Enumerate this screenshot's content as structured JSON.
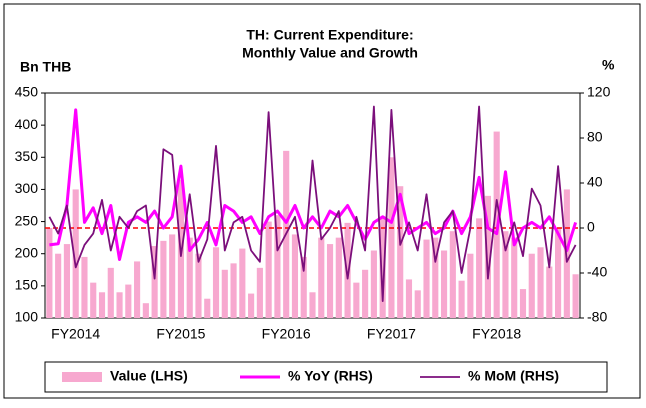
{
  "chart_data": {
    "type": "bar_line_dual",
    "title": [
      "TH: Current Expenditure:",
      "Monthly Value and Growth"
    ],
    "y_label": "Bn THB",
    "y2_label": "%",
    "categories": [
      null,
      null,
      null,
      "FY2014",
      null,
      null,
      null,
      null,
      null,
      null,
      null,
      null,
      null,
      null,
      null,
      "FY2015",
      null,
      null,
      null,
      null,
      null,
      null,
      null,
      null,
      null,
      null,
      null,
      "FY2016",
      null,
      null,
      null,
      null,
      null,
      null,
      null,
      null,
      null,
      null,
      null,
      "FY2017",
      null,
      null,
      null,
      null,
      null,
      null,
      null,
      null,
      null,
      null,
      null,
      "FY2018",
      null,
      null,
      null,
      null,
      null,
      null,
      null,
      null,
      null
    ],
    "series": [
      {
        "name": "Value (LHS)",
        "kind": "bar",
        "axis": "y",
        "color": "#f7a8cf",
        "values": [
          240,
          200,
          215,
          300,
          195,
          155,
          140,
          178,
          140,
          152,
          188,
          123,
          212,
          220,
          230,
          315,
          225,
          200,
          130,
          210,
          175,
          185,
          208,
          138,
          178,
          250,
          260,
          360,
          230,
          195,
          140,
          225,
          215,
          225,
          248,
          155,
          175,
          205,
          255,
          350,
          305,
          160,
          143,
          222,
          225,
          205,
          235,
          158,
          200,
          255,
          290,
          390,
          235,
          225,
          145,
          200,
          210,
          180,
          240,
          300,
          168
        ]
      },
      {
        "name": "% YoY (RHS)",
        "kind": "line",
        "axis": "y2",
        "color": "#ff00ff",
        "values": [
          -15,
          -14,
          20,
          105,
          5,
          18,
          -5,
          20,
          -28,
          5,
          10,
          5,
          15,
          0,
          10,
          55,
          -20,
          -10,
          5,
          -15,
          20,
          15,
          5,
          10,
          -5,
          10,
          15,
          5,
          20,
          0,
          10,
          0,
          15,
          10,
          20,
          5,
          -10,
          5,
          10,
          5,
          30,
          -5,
          0,
          5,
          -5,
          0,
          15,
          -5,
          10,
          45,
          0,
          -5,
          50,
          -15,
          0,
          5,
          0,
          10,
          -5,
          -20,
          5
        ]
      },
      {
        "name": "% MoM (RHS)",
        "kind": "line",
        "axis": "y2",
        "color": "#7b0f7b",
        "values": [
          10,
          -5,
          20,
          -35,
          -15,
          -5,
          25,
          -20,
          10,
          0,
          15,
          20,
          -45,
          70,
          65,
          -25,
          30,
          -30,
          -10,
          73,
          -20,
          5,
          10,
          -20,
          -30,
          103,
          -20,
          -5,
          10,
          -38,
          60,
          -10,
          0,
          15,
          -45,
          10,
          -20,
          108,
          -65,
          105,
          -15,
          5,
          -20,
          30,
          -30,
          5,
          15,
          -40,
          0,
          108,
          -45,
          25,
          -20,
          5,
          -25,
          35,
          20,
          -35,
          55,
          -30,
          -15
        ]
      }
    ],
    "reference_line": {
      "axis": "y2",
      "value": 0,
      "color": "#ff0000"
    },
    "ylim": [
      100,
      450
    ],
    "yticks": [
      100,
      150,
      200,
      250,
      300,
      350,
      400,
      450
    ],
    "y2lim": [
      -80,
      120
    ],
    "y2ticks": [
      -80,
      -40,
      0,
      40,
      80,
      120
    ],
    "legend": "bottom"
  }
}
